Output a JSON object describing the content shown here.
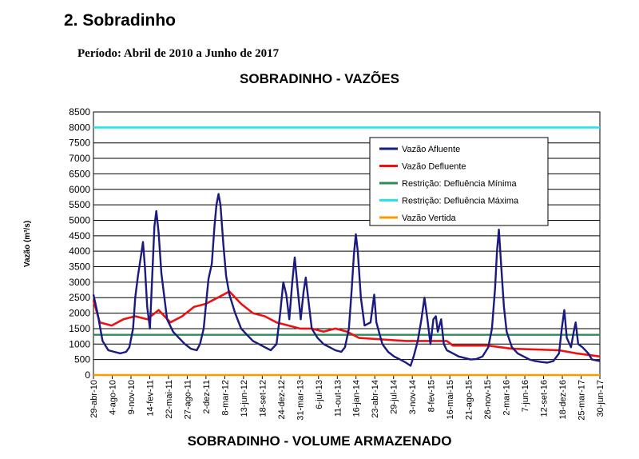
{
  "section": {
    "heading": "2. Sobradinho",
    "period": "Período: Abril de 2010 a Junho de 2017",
    "next_chart_title": "SOBRADINHO  - VOLUME ARMAZENADO"
  },
  "chart_data": {
    "type": "line",
    "title": "SOBRADINHO  - VAZÕES",
    "ylabel": "Vazão (m³/s)",
    "xlabel": "",
    "ylim": [
      0,
      8500
    ],
    "yticks": [
      0,
      500,
      1000,
      1500,
      2000,
      2500,
      3000,
      3500,
      4000,
      4500,
      5000,
      5500,
      6000,
      6500,
      7000,
      7500,
      8000,
      8500
    ],
    "xlim": [
      "2010-04-29",
      "2017-06-30"
    ],
    "x_tick_labels": [
      {
        "label": "29-abr-10",
        "date": "2010-04-29"
      },
      {
        "label": "4-ago-10",
        "date": "2010-08-04"
      },
      {
        "label": "9-nov-10",
        "date": "2010-11-09"
      },
      {
        "label": "14-fev-11",
        "date": "2011-02-14"
      },
      {
        "label": "22-mai-11",
        "date": "2011-05-22"
      },
      {
        "label": "27-ago-11",
        "date": "2011-08-27"
      },
      {
        "label": "2-dez-11",
        "date": "2011-12-02"
      },
      {
        "label": "8-mar-12",
        "date": "2012-03-08"
      },
      {
        "label": "13-jun-12",
        "date": "2012-06-13"
      },
      {
        "label": "18-set-12",
        "date": "2012-09-18"
      },
      {
        "label": "24-dez-12",
        "date": "2012-12-24"
      },
      {
        "label": "31-mar-13",
        "date": "2013-03-31"
      },
      {
        "label": "6-jul-13",
        "date": "2013-07-06"
      },
      {
        "label": "11-out-13",
        "date": "2013-10-11"
      },
      {
        "label": "16-jan-14",
        "date": "2014-01-16"
      },
      {
        "label": "23-abr-14",
        "date": "2014-04-23"
      },
      {
        "label": "29-jul-14",
        "date": "2014-07-29"
      },
      {
        "label": "3-nov-14",
        "date": "2014-11-03"
      },
      {
        "label": "8-fev-15",
        "date": "2015-02-08"
      },
      {
        "label": "16-mai-15",
        "date": "2015-05-16"
      },
      {
        "label": "21-ago-15",
        "date": "2015-08-21"
      },
      {
        "label": "26-nov-15",
        "date": "2015-11-26"
      },
      {
        "label": "2-mar-16",
        "date": "2016-03-02"
      },
      {
        "label": "7-jun-16",
        "date": "2016-06-07"
      },
      {
        "label": "12-set-16",
        "date": "2016-09-12"
      },
      {
        "label": "18-dez-16",
        "date": "2016-12-18"
      },
      {
        "label": "25-mar-17",
        "date": "2017-03-25"
      },
      {
        "label": "30-jun-17",
        "date": "2017-06-30"
      }
    ],
    "grid": true,
    "legend_position": "top-right-inside",
    "series": [
      {
        "name": "Vazão Afluente",
        "color": "#1a1a80",
        "points": [
          [
            "2010-04-29",
            2600
          ],
          [
            "2010-05-20",
            2000
          ],
          [
            "2010-06-15",
            1100
          ],
          [
            "2010-07-15",
            800
          ],
          [
            "2010-08-15",
            750
          ],
          [
            "2010-09-15",
            700
          ],
          [
            "2010-10-15",
            750
          ],
          [
            "2010-11-01",
            900
          ],
          [
            "2010-11-20",
            1500
          ],
          [
            "2010-12-01",
            2500
          ],
          [
            "2010-12-15",
            3200
          ],
          [
            "2011-01-01",
            3900
          ],
          [
            "2011-01-10",
            4300
          ],
          [
            "2011-01-20",
            3500
          ],
          [
            "2011-02-01",
            2200
          ],
          [
            "2011-02-15",
            1500
          ],
          [
            "2011-03-01",
            3500
          ],
          [
            "2011-03-10",
            4800
          ],
          [
            "2011-03-20",
            5300
          ],
          [
            "2011-04-01",
            4600
          ],
          [
            "2011-04-15",
            3300
          ],
          [
            "2011-05-01",
            2500
          ],
          [
            "2011-05-15",
            1800
          ],
          [
            "2011-06-15",
            1400
          ],
          [
            "2011-07-15",
            1200
          ],
          [
            "2011-08-15",
            1000
          ],
          [
            "2011-09-15",
            850
          ],
          [
            "2011-10-15",
            800
          ],
          [
            "2011-11-01",
            1000
          ],
          [
            "2011-11-20",
            1500
          ],
          [
            "2011-12-01",
            2200
          ],
          [
            "2011-12-15",
            3100
          ],
          [
            "2012-01-01",
            3600
          ],
          [
            "2012-01-15",
            4800
          ],
          [
            "2012-01-25",
            5500
          ],
          [
            "2012-02-05",
            5850
          ],
          [
            "2012-02-15",
            5500
          ],
          [
            "2012-03-01",
            4200
          ],
          [
            "2012-03-15",
            3200
          ],
          [
            "2012-04-01",
            2600
          ],
          [
            "2012-05-01",
            2000
          ],
          [
            "2012-06-01",
            1500
          ],
          [
            "2012-07-01",
            1300
          ],
          [
            "2012-08-01",
            1100
          ],
          [
            "2012-09-01",
            1000
          ],
          [
            "2012-10-01",
            900
          ],
          [
            "2012-11-01",
            800
          ],
          [
            "2012-12-01",
            1000
          ],
          [
            "2012-12-20",
            2000
          ],
          [
            "2013-01-05",
            3000
          ],
          [
            "2013-01-20",
            2600
          ],
          [
            "2013-02-05",
            1800
          ],
          [
            "2013-02-20",
            3000
          ],
          [
            "2013-03-05",
            3800
          ],
          [
            "2013-03-20",
            2800
          ],
          [
            "2013-04-05",
            1800
          ],
          [
            "2013-04-20",
            2700
          ],
          [
            "2013-05-01",
            3150
          ],
          [
            "2013-05-15",
            2400
          ],
          [
            "2013-06-01",
            1500
          ],
          [
            "2013-07-01",
            1200
          ],
          [
            "2013-08-01",
            1000
          ],
          [
            "2013-09-01",
            900
          ],
          [
            "2013-10-01",
            800
          ],
          [
            "2013-11-01",
            750
          ],
          [
            "2013-11-20",
            900
          ],
          [
            "2013-12-10",
            1500
          ],
          [
            "2013-12-25",
            2800
          ],
          [
            "2014-01-05",
            3900
          ],
          [
            "2014-01-15",
            4550
          ],
          [
            "2014-01-25",
            4000
          ],
          [
            "2014-02-10",
            2500
          ],
          [
            "2014-03-01",
            1600
          ],
          [
            "2014-04-01",
            1700
          ],
          [
            "2014-04-20",
            2600
          ],
          [
            "2014-05-01",
            1700
          ],
          [
            "2014-06-01",
            1000
          ],
          [
            "2014-07-01",
            750
          ],
          [
            "2014-08-01",
            600
          ],
          [
            "2014-09-01",
            500
          ],
          [
            "2014-10-01",
            400
          ],
          [
            "2014-10-25",
            300
          ],
          [
            "2014-11-10",
            600
          ],
          [
            "2014-12-01",
            1100
          ],
          [
            "2014-12-20",
            1800
          ],
          [
            "2015-01-05",
            2500
          ],
          [
            "2015-01-20",
            1800
          ],
          [
            "2015-02-05",
            1000
          ],
          [
            "2015-02-20",
            1800
          ],
          [
            "2015-03-05",
            1900
          ],
          [
            "2015-03-15",
            1400
          ],
          [
            "2015-04-01",
            1800
          ],
          [
            "2015-04-15",
            1000
          ],
          [
            "2015-05-01",
            800
          ],
          [
            "2015-06-01",
            700
          ],
          [
            "2015-07-01",
            600
          ],
          [
            "2015-08-01",
            550
          ],
          [
            "2015-09-01",
            500
          ],
          [
            "2015-10-01",
            520
          ],
          [
            "2015-11-01",
            600
          ],
          [
            "2015-12-01",
            900
          ],
          [
            "2015-12-20",
            1500
          ],
          [
            "2016-01-05",
            2800
          ],
          [
            "2016-01-15",
            4000
          ],
          [
            "2016-01-25",
            4700
          ],
          [
            "2016-02-05",
            3600
          ],
          [
            "2016-02-20",
            2200
          ],
          [
            "2016-03-05",
            1400
          ],
          [
            "2016-04-01",
            900
          ],
          [
            "2016-05-01",
            700
          ],
          [
            "2016-06-01",
            600
          ],
          [
            "2016-07-01",
            500
          ],
          [
            "2016-08-01",
            450
          ],
          [
            "2016-09-01",
            420
          ],
          [
            "2016-10-01",
            400
          ],
          [
            "2016-11-01",
            450
          ],
          [
            "2016-12-01",
            700
          ],
          [
            "2016-12-15",
            1500
          ],
          [
            "2016-12-28",
            2100
          ],
          [
            "2017-01-10",
            1200
          ],
          [
            "2017-02-01",
            900
          ],
          [
            "2017-02-15",
            1400
          ],
          [
            "2017-02-25",
            1700
          ],
          [
            "2017-03-10",
            1000
          ],
          [
            "2017-04-01",
            900
          ],
          [
            "2017-05-01",
            700
          ],
          [
            "2017-05-20",
            500
          ],
          [
            "2017-06-30",
            450
          ]
        ]
      },
      {
        "name": "Vazão Defluente",
        "color": "#ee1111",
        "points": [
          [
            "2010-04-29",
            2400
          ],
          [
            "2010-06-01",
            1700
          ],
          [
            "2010-08-01",
            1600
          ],
          [
            "2010-10-01",
            1800
          ],
          [
            "2010-12-01",
            1900
          ],
          [
            "2011-02-01",
            1800
          ],
          [
            "2011-04-01",
            2100
          ],
          [
            "2011-06-01",
            1700
          ],
          [
            "2011-08-01",
            1900
          ],
          [
            "2011-10-01",
            2200
          ],
          [
            "2011-12-01",
            2300
          ],
          [
            "2012-02-01",
            2500
          ],
          [
            "2012-04-01",
            2700
          ],
          [
            "2012-06-01",
            2300
          ],
          [
            "2012-08-01",
            2000
          ],
          [
            "2012-10-01",
            1900
          ],
          [
            "2012-12-01",
            1700
          ],
          [
            "2013-02-01",
            1600
          ],
          [
            "2013-04-01",
            1500
          ],
          [
            "2013-06-01",
            1500
          ],
          [
            "2013-08-01",
            1400
          ],
          [
            "2013-10-01",
            1500
          ],
          [
            "2013-12-01",
            1400
          ],
          [
            "2014-02-01",
            1200
          ],
          [
            "2014-06-01",
            1150
          ],
          [
            "2014-10-01",
            1100
          ],
          [
            "2015-03-01",
            1100
          ],
          [
            "2015-05-01",
            1100
          ],
          [
            "2015-06-01",
            950
          ],
          [
            "2015-12-01",
            950
          ],
          [
            "2016-02-01",
            900
          ],
          [
            "2016-04-01",
            850
          ],
          [
            "2016-12-01",
            800
          ],
          [
            "2017-03-01",
            700
          ],
          [
            "2017-05-01",
            650
          ],
          [
            "2017-06-30",
            600
          ]
        ]
      },
      {
        "name": "Restrição: Defluência Mínima",
        "color": "#2e8b57",
        "points": [
          [
            "2010-04-29",
            1300
          ],
          [
            "2017-06-30",
            1300
          ]
        ]
      },
      {
        "name": "Restrição: Defluência Máxima",
        "color": "#22e5ee",
        "points": [
          [
            "2010-04-29",
            8000
          ],
          [
            "2017-06-30",
            8000
          ]
        ]
      },
      {
        "name": "Vazão Vertida",
        "color": "#ff9900",
        "points": [
          [
            "2010-04-29",
            0
          ],
          [
            "2017-06-30",
            0
          ]
        ]
      }
    ]
  }
}
